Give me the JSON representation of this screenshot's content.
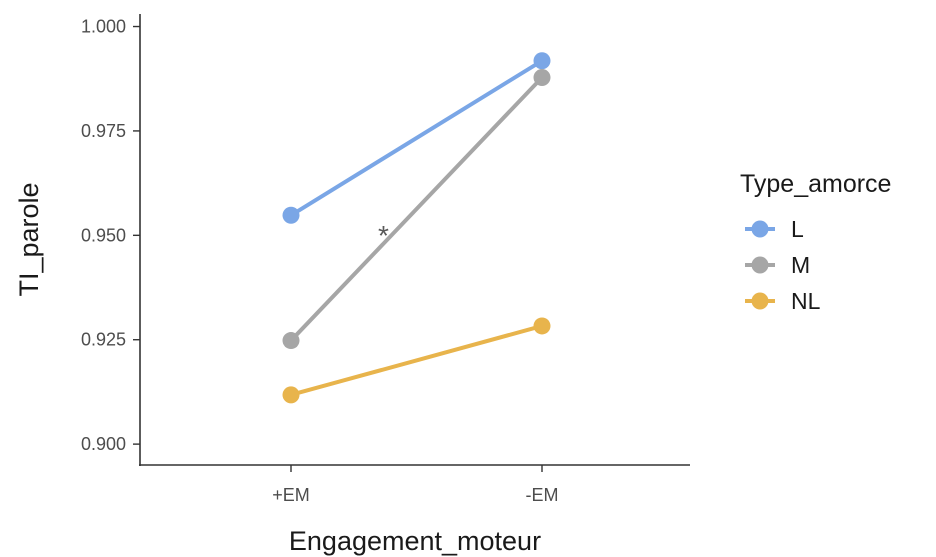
{
  "chart_data": {
    "type": "line",
    "title": "",
    "xlabel": "Engagement_moteur",
    "ylabel": "TI_parole",
    "categories": [
      "+EM",
      "-EM"
    ],
    "ylim": [
      0.895,
      1.003
    ],
    "yticks": [
      0.9,
      0.925,
      0.95,
      0.975,
      1.0
    ],
    "ytick_labels": [
      "0.900",
      "0.925",
      "0.950",
      "0.975",
      "1.000"
    ],
    "grid": false,
    "legend": {
      "title": "Type_amorce",
      "position": "right"
    },
    "series": [
      {
        "name": "L",
        "color": "#7AA6E6",
        "values": [
          0.9548,
          0.9918
        ]
      },
      {
        "name": "M",
        "color": "#A6A6A6",
        "values": [
          0.9248,
          0.9878
        ]
      },
      {
        "name": "NL",
        "color": "#E8B44C",
        "values": [
          0.9118,
          0.9283
        ]
      }
    ],
    "annotations": [
      {
        "text": "*",
        "x_between": [
          "+EM",
          "-EM"
        ],
        "y": 0.952
      }
    ]
  }
}
